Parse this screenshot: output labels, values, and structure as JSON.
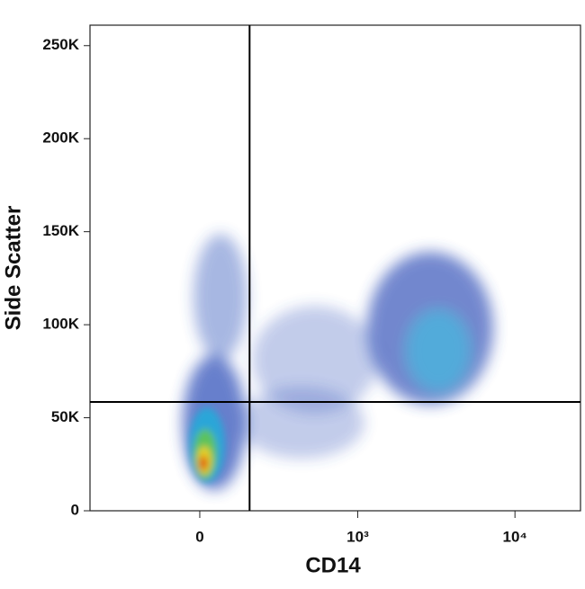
{
  "chart_data": {
    "type": "flow-density",
    "x_label": "CD14",
    "y_label": "Side Scatter",
    "xscale": "biexponential",
    "xlim": [
      -480,
      26000
    ],
    "ylim": [
      0,
      261000
    ],
    "xticks": [
      0,
      {
        "value": 1000,
        "label": "10³"
      },
      {
        "value": 10000,
        "label": "10⁴"
      }
    ],
    "yticks": [
      0,
      {
        "value": 50000,
        "label": "50K"
      },
      {
        "value": 100000,
        "label": "100K"
      },
      {
        "value": 150000,
        "label": "150K"
      },
      {
        "value": 200000,
        "label": "200K"
      },
      {
        "value": 250000,
        "label": "250K"
      }
    ],
    "quadrant_gate": {
      "x": 160,
      "y": 58500
    }
  }
}
